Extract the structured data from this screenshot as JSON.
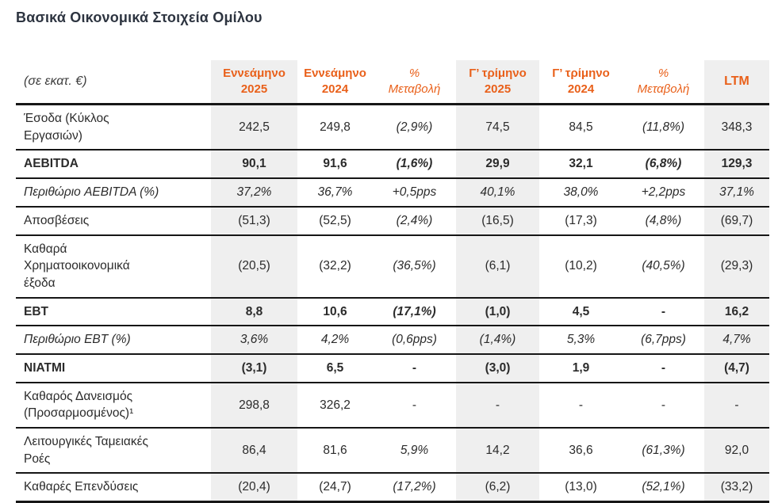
{
  "page": {
    "title": "Βασικά Οικονομικά Στοιχεία Ομίλου"
  },
  "colors": {
    "accent_orange": "#E9601A",
    "highlight_gray": "#EFEFEF",
    "title_dark": "#2D3440",
    "rule_black": "#161616",
    "body_text": "#2B2B2B"
  },
  "table": {
    "unit_label": "(σε εκατ. €)",
    "headers": [
      {
        "label": "Εννεάμηνο\n2025",
        "highlighted": true
      },
      {
        "label": "Εννεάμηνο\n2024",
        "highlighted": false
      },
      {
        "label": "%\nΜεταβολή",
        "highlighted": false
      },
      {
        "label": "Γ’ τρίμηνο\n2025",
        "highlighted": true
      },
      {
        "label": "Γ’ τρίμηνο\n2024",
        "highlighted": false
      },
      {
        "label": "%\nΜεταβολή",
        "highlighted": false
      },
      {
        "label": "LTM",
        "highlighted": true
      }
    ],
    "rows": [
      {
        "label": "Έσοδα (Κύκλος\nΕργασιών)",
        "style": "normal",
        "values": [
          "242,5",
          "249,8",
          "(2,9%)",
          "74,5",
          "84,5",
          "(11,8%)",
          "348,3"
        ]
      },
      {
        "label": "AEBITDA",
        "style": "bold",
        "values": [
          "90,1",
          "91,6",
          "(1,6%)",
          "29,9",
          "32,1",
          "(6,8%)",
          "129,3"
        ]
      },
      {
        "label": "Περιθώριο AEBITDA (%)",
        "style": "italic",
        "values": [
          "37,2%",
          "36,7%",
          "+0,5pps",
          "40,1%",
          "38,0%",
          "+2,2pps",
          "37,1%"
        ]
      },
      {
        "label": "Αποσβέσεις",
        "style": "normal",
        "values": [
          "(51,3)",
          "(52,5)",
          "(2,4%)",
          "(16,5)",
          "(17,3)",
          "(4,8%)",
          "(69,7)"
        ]
      },
      {
        "label": "Καθαρά\nΧρηματοοικονομικά\nέξοδα",
        "style": "normal",
        "values": [
          "(20,5)",
          "(32,2)",
          "(36,5%)",
          "(6,1)",
          "(10,2)",
          "(40,5%)",
          "(29,3)"
        ]
      },
      {
        "label": "EBT",
        "style": "bold",
        "values": [
          "8,8",
          "10,6",
          "(17,1%)",
          "(1,0)",
          "4,5",
          "-",
          "16,2"
        ]
      },
      {
        "label": "Περιθώριο EBT (%)",
        "style": "italic",
        "values": [
          "3,6%",
          "4,2%",
          "(0,6pps)",
          "(1,4%)",
          "5,3%",
          "(6,7pps)",
          "4,7%"
        ]
      },
      {
        "label": "NIATMI",
        "style": "bold",
        "values": [
          "(3,1)",
          "6,5",
          "-",
          "(3,0)",
          "1,9",
          "-",
          "(4,7)"
        ]
      },
      {
        "label": "Καθαρός Δανεισμός\n(Προσαρμοσμένος)¹",
        "style": "normal",
        "values": [
          "298,8",
          "326,2",
          "-",
          "-",
          "-",
          "-",
          "-"
        ]
      },
      {
        "label": "Λειτουργικές Ταμειακές\nΡοές",
        "style": "normal",
        "values": [
          "86,4",
          "81,6",
          "5,9%",
          "14,2",
          "36,6",
          "(61,3%)",
          "92,0"
        ]
      },
      {
        "label": "Καθαρές Επενδύσεις",
        "style": "normal",
        "values": [
          "(20,4)",
          "(24,7)",
          "(17,2%)",
          "(6,2)",
          "(13,0)",
          "(52,1%)",
          "(33,2)"
        ]
      }
    ]
  }
}
